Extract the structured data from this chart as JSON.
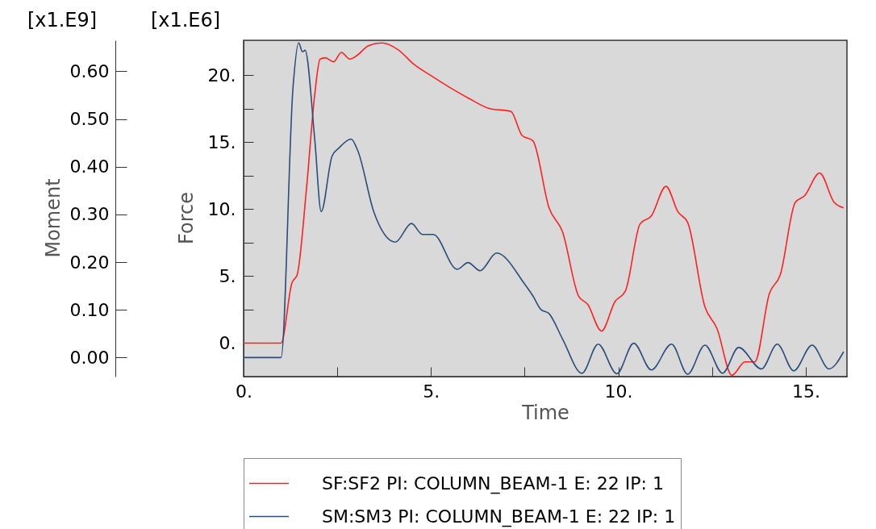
{
  "chart_data": {
    "type": "line",
    "xlabel": "Time",
    "ylabel": "Force",
    "y2label": "Moment",
    "annotations": [
      "[x1.E9]",
      "[x1.E6]"
    ],
    "xlim": [
      0,
      16.1
    ],
    "ylim": [
      -2.5,
      22.6
    ],
    "y2lim": [
      -0.04,
      0.665
    ],
    "xticks": [
      {
        "value": 0,
        "label": "0."
      },
      {
        "value": 2.5,
        "label": null
      },
      {
        "value": 5,
        "label": "5."
      },
      {
        "value": 7.5,
        "label": null
      },
      {
        "value": 10,
        "label": "10."
      },
      {
        "value": 12.5,
        "label": null
      },
      {
        "value": 15,
        "label": "15."
      }
    ],
    "yticks": [
      {
        "value": 0,
        "label": "0."
      },
      {
        "value": 2.5,
        "label": null
      },
      {
        "value": 5,
        "label": "5."
      },
      {
        "value": 7.5,
        "label": null
      },
      {
        "value": 10,
        "label": "10."
      },
      {
        "value": 12.5,
        "label": null
      },
      {
        "value": 15,
        "label": "15."
      },
      {
        "value": 17.5,
        "label": null
      },
      {
        "value": 20,
        "label": "20."
      }
    ],
    "y2ticks": [
      {
        "value": 0,
        "label": "0.00"
      },
      {
        "value": 0.1,
        "label": "0.10"
      },
      {
        "value": 0.2,
        "label": "0.20"
      },
      {
        "value": 0.3,
        "label": "0.30"
      },
      {
        "value": 0.4,
        "label": "0.40"
      },
      {
        "value": 0.5,
        "label": "0.50"
      },
      {
        "value": 0.6,
        "label": "0.60"
      }
    ],
    "grid": false,
    "legend": "bottom",
    "line_style": "solid",
    "marker": "none",
    "series": [
      {
        "name": "SF:SF2 PI: COLUMN_BEAM-1 E: 22 IP: 1",
        "color": "#ff2020",
        "x": [
          0,
          1.0,
          1.29,
          1.43,
          1.68,
          1.9,
          2.04,
          2.18,
          2.4,
          2.61,
          2.83,
          3.04,
          3.33,
          3.69,
          4.12,
          4.55,
          4.98,
          5.49,
          5.99,
          6.57,
          7.13,
          7.43,
          7.72,
          8.15,
          8.51,
          8.94,
          9.18,
          9.55,
          9.91,
          10.19,
          10.58,
          10.88,
          11.27,
          11.59,
          11.85,
          12.31,
          12.63,
          13.03,
          13.38,
          13.64,
          14.03,
          14.32,
          14.72,
          14.97,
          15.37,
          15.76,
          16.01
        ],
        "values": [
          0,
          0,
          4.5,
          5.1,
          11.6,
          18.6,
          21.2,
          21.3,
          21.0,
          21.7,
          21.2,
          21.5,
          22.2,
          22.4,
          21.9,
          20.8,
          20.0,
          19.1,
          18.3,
          17.5,
          17.3,
          15.5,
          15.1,
          10.1,
          8.3,
          3.5,
          2.9,
          0.9,
          3.1,
          3.9,
          8.9,
          9.5,
          11.7,
          9.8,
          9.0,
          2.7,
          1.1,
          -2.4,
          -1.4,
          -1.4,
          3.7,
          5.1,
          10.5,
          11.0,
          12.7,
          10.5,
          10.1
        ]
      },
      {
        "name": "SM:SM3 PI: COLUMN_BEAM-1 E: 22 IP: 1",
        "color": "#2a4d7a",
        "axis": "y2",
        "x": [
          0,
          1.0,
          1.32,
          1.47,
          1.57,
          1.64,
          1.9,
          2.07,
          2.36,
          2.54,
          2.87,
          3.05,
          3.48,
          4.05,
          4.48,
          4.77,
          5.06,
          5.7,
          5.99,
          6.31,
          6.75,
          7.5,
          7.72,
          7.93,
          8.15,
          8.51,
          9.03,
          9.46,
          9.96,
          10.41,
          10.88,
          11.42,
          11.85,
          12.31,
          12.78,
          13.21,
          13.82,
          14.24,
          14.68,
          15.17,
          15.62,
          16.01
        ],
        "values": [
          0,
          0,
          0.568,
          0.66,
          0.641,
          0.644,
          0.456,
          0.306,
          0.422,
          0.439,
          0.458,
          0.433,
          0.304,
          0.242,
          0.281,
          0.258,
          0.258,
          0.185,
          0.199,
          0.182,
          0.219,
          0.154,
          0.129,
          0.101,
          0.092,
          0.039,
          -0.033,
          0.028,
          -0.034,
          0.03,
          -0.026,
          0.028,
          -0.035,
          0.026,
          -0.033,
          0.021,
          -0.024,
          0.028,
          -0.028,
          0.026,
          -0.024,
          0.012
        ]
      }
    ]
  }
}
